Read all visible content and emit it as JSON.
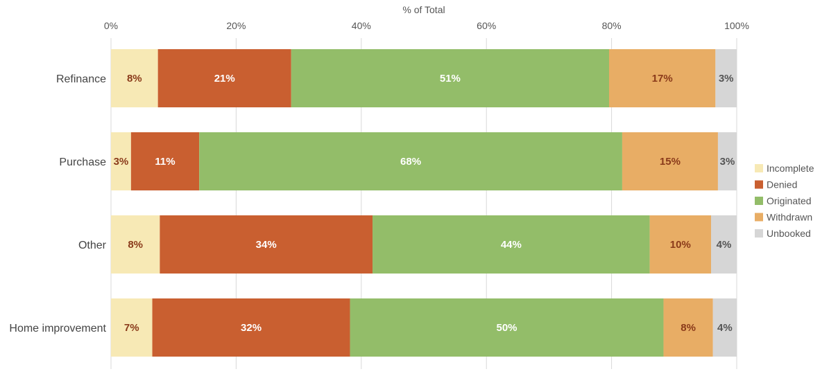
{
  "chart_data": {
    "type": "bar",
    "orientation": "horizontal",
    "stacked": true,
    "xlabel": "% of Total",
    "xlim": [
      0,
      100
    ],
    "xticks": [
      "0%",
      "20%",
      "40%",
      "60%",
      "80%",
      "100%"
    ],
    "grid": "vertical",
    "legend_position": "right",
    "categories": [
      "Refinance",
      "Purchase",
      "Other",
      "Home improvement"
    ],
    "series": [
      {
        "name": "Incomplete",
        "color": "#f7e9b5",
        "label_color": "#8a3a1a",
        "values": [
          7.5,
          3.2,
          7.8,
          6.6
        ],
        "labels": [
          "8%",
          "3%",
          "8%",
          "7%"
        ]
      },
      {
        "name": "Denied",
        "color": "#c95f30",
        "label_color": "#ffffff",
        "values": [
          21.3,
          10.9,
          34.0,
          31.6
        ],
        "labels": [
          "21%",
          "11%",
          "34%",
          "32%"
        ]
      },
      {
        "name": "Originated",
        "color": "#93bd69",
        "label_color": "#ffffff",
        "values": [
          50.8,
          67.6,
          44.3,
          50.1
        ],
        "labels": [
          "51%",
          "68%",
          "44%",
          "50%"
        ]
      },
      {
        "name": "Withdrawn",
        "color": "#e8ad65",
        "label_color": "#8a3a1a",
        "values": [
          17.0,
          15.3,
          9.8,
          7.9
        ],
        "labels": [
          "17%",
          "15%",
          "10%",
          "8%"
        ]
      },
      {
        "name": "Unbooked",
        "color": "#d6d6d6",
        "label_color": "#555555",
        "values": [
          3.4,
          3.0,
          4.1,
          3.8
        ],
        "labels": [
          "3%",
          "3%",
          "4%",
          "4%"
        ]
      }
    ]
  }
}
